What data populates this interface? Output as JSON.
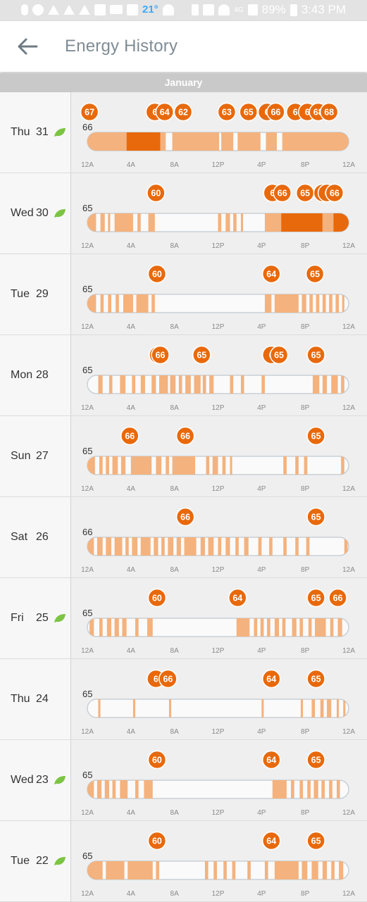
{
  "status_bar": {
    "weather_temp": "21°",
    "battery": "89%",
    "time": "3:43 PM",
    "network": "4G"
  },
  "app_bar": {
    "title": "Energy History",
    "back_icon": "back-arrow-icon"
  },
  "month": "January",
  "tick_labels": [
    "12A",
    "4A",
    "8A",
    "12P",
    "4P",
    "8P",
    "12A"
  ],
  "colors": {
    "accent": "#e8690b",
    "heat": "#f4b27e",
    "leaf": "#7cc443",
    "bar_border": "#c9d0d6"
  },
  "chart_data": [
    {
      "type": "timeline",
      "day": "Thu",
      "date": "31",
      "leaf": true,
      "base_temp": "66",
      "setpoints": [
        [
          0.2,
          "67"
        ],
        [
          6.2,
          "6"
        ],
        [
          7.1,
          "64"
        ],
        [
          8.8,
          "62"
        ],
        [
          12.8,
          "63"
        ],
        [
          14.8,
          "65"
        ],
        [
          16.5,
          "6"
        ],
        [
          17.3,
          "66"
        ],
        [
          19.1,
          "6"
        ],
        [
          20.2,
          "6"
        ],
        [
          21.2,
          "68"
        ],
        [
          22.2,
          "68"
        ]
      ],
      "segments": [
        [
          0,
          3.6,
          "#f4b27e"
        ],
        [
          3.6,
          6.7,
          "#e8690b"
        ],
        [
          6.7,
          7.2,
          "#f4b27e"
        ],
        [
          7.8,
          12.1,
          "#f4b27e"
        ],
        [
          12.3,
          13.4,
          "#f4b27e"
        ],
        [
          13.8,
          15.9,
          "#f4b27e"
        ],
        [
          16.4,
          17.4,
          "#f4b27e"
        ],
        [
          17.9,
          24,
          "#f4b27e"
        ]
      ]
    },
    {
      "type": "timeline",
      "day": "Wed",
      "date": "30",
      "leaf": true,
      "base_temp": "65",
      "setpoints": [
        [
          6.3,
          "60"
        ],
        [
          17.0,
          "6"
        ],
        [
          17.9,
          "66"
        ],
        [
          20.0,
          "65"
        ],
        [
          21.6,
          "6"
        ],
        [
          22.0,
          "6"
        ],
        [
          22.7,
          "66"
        ]
      ],
      "segments": [
        [
          0,
          0.8,
          "#f4b27e"
        ],
        [
          1.2,
          1.6,
          "#f4b27e"
        ],
        [
          1.9,
          2.1,
          "#f4b27e"
        ],
        [
          2.5,
          4.2,
          "#f4b27e"
        ],
        [
          4.6,
          4.9,
          "#f4b27e"
        ],
        [
          5.6,
          6.2,
          "#f4b27e"
        ],
        [
          12.0,
          12.3,
          "#f4b27e"
        ],
        [
          12.7,
          13.1,
          "#f4b27e"
        ],
        [
          13.4,
          13.7,
          "#f4b27e"
        ],
        [
          14.1,
          14.3,
          "#f4b27e"
        ],
        [
          16.3,
          17.8,
          "#f4b27e"
        ],
        [
          17.8,
          21.6,
          "#e8690b"
        ],
        [
          21.6,
          22.6,
          "#f4b27e"
        ],
        [
          22.6,
          24,
          "#e8690b"
        ]
      ]
    },
    {
      "type": "timeline",
      "day": "Tue",
      "date": "29",
      "leaf": false,
      "base_temp": "65",
      "setpoints": [
        [
          6.4,
          "60"
        ],
        [
          16.9,
          "64"
        ],
        [
          20.9,
          "65"
        ]
      ],
      "segments": [
        [
          0,
          0.8,
          "#f4b27e"
        ],
        [
          1.2,
          1.5,
          "#f4b27e"
        ],
        [
          1.9,
          2.2,
          "#f4b27e"
        ],
        [
          2.6,
          2.9,
          "#f4b27e"
        ],
        [
          3.3,
          4.2,
          "#f4b27e"
        ],
        [
          4.5,
          5.6,
          "#f4b27e"
        ],
        [
          5.9,
          6.2,
          "#f4b27e"
        ],
        [
          16.3,
          16.9,
          "#f4b27e"
        ],
        [
          17.2,
          19.4,
          "#f4b27e"
        ],
        [
          19.7,
          20.1,
          "#f4b27e"
        ],
        [
          20.4,
          20.7,
          "#f4b27e"
        ],
        [
          21.0,
          21.3,
          "#f4b27e"
        ],
        [
          21.6,
          21.9,
          "#f4b27e"
        ],
        [
          22.2,
          22.5,
          "#f4b27e"
        ],
        [
          22.8,
          23.1,
          "#f4b27e"
        ],
        [
          23.4,
          23.6,
          "#f4b27e"
        ]
      ]
    },
    {
      "type": "timeline",
      "day": "Mon",
      "date": "28",
      "leaf": false,
      "base_temp": "65",
      "setpoints": [
        [
          6.5,
          "6"
        ],
        [
          6.7,
          "66"
        ],
        [
          10.5,
          "65"
        ],
        [
          16.9,
          "6"
        ],
        [
          17.6,
          "65"
        ],
        [
          21.0,
          "65"
        ]
      ],
      "segments": [
        [
          1.0,
          1.4,
          "#f4b27e"
        ],
        [
          2.0,
          2.3,
          "#f4b27e"
        ],
        [
          3.0,
          3.5,
          "#f4b27e"
        ],
        [
          4.1,
          4.4,
          "#f4b27e"
        ],
        [
          4.9,
          5.3,
          "#f4b27e"
        ],
        [
          5.9,
          6.3,
          "#f4b27e"
        ],
        [
          6.6,
          7.4,
          "#f4b27e"
        ],
        [
          7.6,
          8.1,
          "#f4b27e"
        ],
        [
          8.4,
          8.7,
          "#f4b27e"
        ],
        [
          9.0,
          9.5,
          "#f4b27e"
        ],
        [
          9.8,
          10.4,
          "#f4b27e"
        ],
        [
          10.6,
          10.9,
          "#f4b27e"
        ],
        [
          11.2,
          11.6,
          "#f4b27e"
        ],
        [
          13.1,
          13.4,
          "#f4b27e"
        ],
        [
          14.1,
          14.4,
          "#f4b27e"
        ],
        [
          16.0,
          16.3,
          "#f4b27e"
        ],
        [
          20.7,
          21.3,
          "#f4b27e"
        ],
        [
          21.6,
          22.0,
          "#f4b27e"
        ],
        [
          22.4,
          23.0,
          "#f4b27e"
        ],
        [
          23.3,
          23.6,
          "#f4b27e"
        ]
      ]
    },
    {
      "type": "timeline",
      "day": "Sun",
      "date": "27",
      "leaf": false,
      "base_temp": "65",
      "setpoints": [
        [
          3.9,
          "66"
        ],
        [
          9.0,
          "66"
        ],
        [
          21.0,
          "65"
        ]
      ],
      "segments": [
        [
          0,
          0.7,
          "#f4b27e"
        ],
        [
          1.1,
          1.4,
          "#f4b27e"
        ],
        [
          1.7,
          2.0,
          "#f4b27e"
        ],
        [
          2.3,
          2.8,
          "#f4b27e"
        ],
        [
          3.1,
          3.5,
          "#f4b27e"
        ],
        [
          4.0,
          5.9,
          "#f4b27e"
        ],
        [
          6.3,
          6.8,
          "#f4b27e"
        ],
        [
          7.2,
          7.5,
          "#f4b27e"
        ],
        [
          7.8,
          9.9,
          "#f4b27e"
        ],
        [
          10.9,
          11.2,
          "#f4b27e"
        ],
        [
          11.5,
          12.0,
          "#f4b27e"
        ],
        [
          12.4,
          12.7,
          "#f4b27e"
        ],
        [
          13.1,
          13.3,
          "#f4b27e"
        ],
        [
          18.0,
          18.3,
          "#f4b27e"
        ],
        [
          19.1,
          19.4,
          "#f4b27e"
        ],
        [
          19.9,
          20.2,
          "#f4b27e"
        ],
        [
          23.3,
          23.6,
          "#f4b27e"
        ]
      ]
    },
    {
      "type": "timeline",
      "day": "Sat",
      "date": "26",
      "leaf": false,
      "base_temp": "66",
      "setpoints": [
        [
          9.0,
          "66"
        ],
        [
          21.0,
          "65"
        ]
      ],
      "segments": [
        [
          0,
          0.6,
          "#f4b27e"
        ],
        [
          0.9,
          1.4,
          "#f4b27e"
        ],
        [
          1.7,
          2.2,
          "#f4b27e"
        ],
        [
          2.5,
          3.2,
          "#f4b27e"
        ],
        [
          3.5,
          3.8,
          "#f4b27e"
        ],
        [
          4.1,
          4.6,
          "#f4b27e"
        ],
        [
          4.9,
          5.8,
          "#f4b27e"
        ],
        [
          6.1,
          6.5,
          "#f4b27e"
        ],
        [
          6.8,
          7.1,
          "#f4b27e"
        ],
        [
          7.4,
          7.9,
          "#f4b27e"
        ],
        [
          8.2,
          8.6,
          "#f4b27e"
        ],
        [
          8.9,
          10.0,
          "#f4b27e"
        ],
        [
          10.4,
          10.8,
          "#f4b27e"
        ],
        [
          11.1,
          11.6,
          "#f4b27e"
        ],
        [
          12.0,
          12.3,
          "#f4b27e"
        ],
        [
          12.7,
          13.1,
          "#f4b27e"
        ],
        [
          13.6,
          13.9,
          "#f4b27e"
        ],
        [
          14.4,
          14.8,
          "#f4b27e"
        ],
        [
          15.7,
          16.0,
          "#f4b27e"
        ],
        [
          16.7,
          17.0,
          "#f4b27e"
        ],
        [
          18.0,
          18.3,
          "#f4b27e"
        ],
        [
          19.1,
          19.4,
          "#f4b27e"
        ],
        [
          20.1,
          20.4,
          "#f4b27e"
        ],
        [
          23.6,
          23.9,
          "#f4b27e"
        ]
      ]
    },
    {
      "type": "timeline",
      "day": "Fri",
      "date": "25",
      "leaf": true,
      "base_temp": "65",
      "setpoints": [
        [
          6.4,
          "60"
        ],
        [
          13.8,
          "64"
        ],
        [
          21.0,
          "65"
        ],
        [
          23.0,
          "66"
        ]
      ],
      "segments": [
        [
          0.2,
          0.6,
          "#f4b27e"
        ],
        [
          1.1,
          1.4,
          "#f4b27e"
        ],
        [
          1.8,
          2.2,
          "#f4b27e"
        ],
        [
          2.5,
          2.9,
          "#f4b27e"
        ],
        [
          3.2,
          3.6,
          "#f4b27e"
        ],
        [
          4.4,
          4.7,
          "#f4b27e"
        ],
        [
          5.5,
          6.0,
          "#f4b27e"
        ],
        [
          13.7,
          14.9,
          "#f4b27e"
        ],
        [
          15.3,
          15.6,
          "#f4b27e"
        ],
        [
          15.9,
          16.2,
          "#f4b27e"
        ],
        [
          16.5,
          16.8,
          "#f4b27e"
        ],
        [
          17.2,
          17.6,
          "#f4b27e"
        ],
        [
          17.9,
          18.2,
          "#f4b27e"
        ],
        [
          18.8,
          19.2,
          "#f4b27e"
        ],
        [
          19.5,
          19.8,
          "#f4b27e"
        ],
        [
          20.3,
          20.6,
          "#f4b27e"
        ],
        [
          20.9,
          21.9,
          "#f4b27e"
        ],
        [
          22.3,
          22.6,
          "#f4b27e"
        ],
        [
          23.0,
          23.4,
          "#f4b27e"
        ]
      ]
    },
    {
      "type": "timeline",
      "day": "Thu",
      "date": "24",
      "leaf": false,
      "base_temp": "65",
      "setpoints": [
        [
          6.3,
          "6"
        ],
        [
          7.4,
          "66"
        ],
        [
          16.9,
          "64"
        ],
        [
          21.0,
          "65"
        ]
      ],
      "segments": [
        [
          1.0,
          1.2,
          "#f4b27e"
        ],
        [
          4.2,
          4.4,
          "#f4b27e"
        ],
        [
          7.5,
          7.7,
          "#f4b27e"
        ],
        [
          16.0,
          16.2,
          "#f4b27e"
        ],
        [
          19.6,
          19.8,
          "#f4b27e"
        ],
        [
          20.6,
          20.9,
          "#f4b27e"
        ],
        [
          21.4,
          21.7,
          "#f4b27e"
        ],
        [
          22.0,
          22.4,
          "#f4b27e"
        ],
        [
          22.9,
          23.1,
          "#f4b27e"
        ],
        [
          23.5,
          23.7,
          "#f4b27e"
        ]
      ]
    },
    {
      "type": "timeline",
      "day": "Wed",
      "date": "23",
      "leaf": true,
      "base_temp": "65",
      "setpoints": [
        [
          6.4,
          "60"
        ],
        [
          16.9,
          "64"
        ],
        [
          21.0,
          "65"
        ]
      ],
      "segments": [
        [
          0,
          0.6,
          "#f4b27e"
        ],
        [
          0.9,
          1.3,
          "#f4b27e"
        ],
        [
          1.6,
          2.0,
          "#f4b27e"
        ],
        [
          2.3,
          2.6,
          "#f4b27e"
        ],
        [
          3.0,
          3.7,
          "#f4b27e"
        ],
        [
          4.4,
          4.7,
          "#f4b27e"
        ],
        [
          5.2,
          6.0,
          "#f4b27e"
        ],
        [
          17.0,
          18.3,
          "#f4b27e"
        ],
        [
          18.7,
          19.0,
          "#f4b27e"
        ],
        [
          19.5,
          19.8,
          "#f4b27e"
        ],
        [
          20.2,
          20.5,
          "#f4b27e"
        ],
        [
          20.8,
          21.2,
          "#f4b27e"
        ],
        [
          21.5,
          21.8,
          "#f4b27e"
        ],
        [
          22.2,
          22.5,
          "#f4b27e"
        ],
        [
          22.9,
          23.2,
          "#f4b27e"
        ]
      ]
    },
    {
      "type": "timeline",
      "day": "Tue",
      "date": "22",
      "leaf": true,
      "base_temp": "65",
      "setpoints": [
        [
          6.4,
          "60"
        ],
        [
          16.9,
          "64"
        ],
        [
          21.0,
          "65"
        ]
      ],
      "segments": [
        [
          0,
          1.4,
          "#f4b27e"
        ],
        [
          1.7,
          3.4,
          "#f4b27e"
        ],
        [
          3.7,
          6.0,
          "#f4b27e"
        ],
        [
          6.3,
          6.6,
          "#f4b27e"
        ],
        [
          10.8,
          11.1,
          "#f4b27e"
        ],
        [
          11.6,
          11.9,
          "#f4b27e"
        ],
        [
          12.5,
          12.8,
          "#f4b27e"
        ],
        [
          13.3,
          13.6,
          "#f4b27e"
        ],
        [
          14.7,
          15.0,
          "#f4b27e"
        ],
        [
          16.3,
          16.6,
          "#f4b27e"
        ],
        [
          17.2,
          19.4,
          "#f4b27e"
        ],
        [
          19.7,
          20.2,
          "#f4b27e"
        ],
        [
          20.6,
          21.2,
          "#f4b27e"
        ],
        [
          21.6,
          22.0,
          "#f4b27e"
        ],
        [
          22.4,
          22.7,
          "#f4b27e"
        ],
        [
          23.1,
          23.5,
          "#f4b27e"
        ]
      ]
    }
  ]
}
